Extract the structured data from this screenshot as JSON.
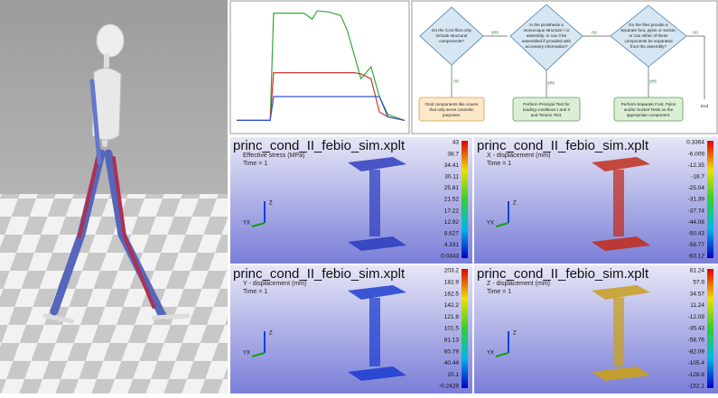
{
  "line_chart": {
    "type": "line",
    "xlim": [
      0,
      100
    ],
    "ylim": [
      0,
      100
    ],
    "x": [
      0,
      10,
      20,
      22,
      40,
      45,
      48,
      55,
      62,
      66,
      70,
      74,
      80,
      85,
      90,
      100
    ],
    "series": [
      {
        "color": "#33aa33",
        "values": [
          5,
          5,
          5,
          95,
          95,
          90,
          97,
          96,
          93,
          80,
          60,
          40,
          50,
          25,
          10,
          5
        ]
      },
      {
        "color": "#cc3333",
        "values": [
          5,
          5,
          5,
          45,
          45,
          45,
          45,
          45,
          45,
          45,
          45,
          44,
          40,
          12,
          8,
          5
        ]
      },
      {
        "color": "#3355cc",
        "values": [
          5,
          5,
          5,
          25,
          25,
          25,
          25,
          25,
          25,
          25,
          25,
          25,
          25,
          25,
          8,
          5
        ]
      }
    ]
  },
  "flowchart": {
    "decisions": [
      {
        "line1": "Do the CAD files only",
        "line2": "include structural",
        "line3": "components?"
      },
      {
        "line1": "In the prosthesis a",
        "line2": "monocoque structure / or",
        "line3": "assembly, or can it be",
        "line4": "assembled if provided with",
        "line5": "accessory information?"
      },
      {
        "line1": "Do the files provide a",
        "line2": "separate foot, pylon or socket,",
        "line3": "or can either of these",
        "line4": "components be separated",
        "line5": "from the assembly?"
      }
    ],
    "actions": [
      {
        "line1": "Omit components like covers",
        "line2": "that only serve cosmetic",
        "line3": "purposes."
      },
      {
        "line1": "Perform Principal Test for",
        "line2": "loading conditions I and II",
        "line3": "and Torsion Test."
      },
      {
        "line1": "Perform Separate Foot, Pylon",
        "line2": "and/or Socket Tests on the",
        "line3": "appropriate component."
      }
    ],
    "end": "End",
    "edges": [
      "yes",
      "no",
      "yes",
      "no",
      "yes",
      "no"
    ]
  },
  "triad": {
    "z": "Z",
    "yx": "YX"
  },
  "panels": [
    {
      "title": "princ_cond_II_febio_sim.xplt",
      "field": "Effective stress (MPa)",
      "time": "Time = 1",
      "tint": "#3040c0",
      "colorbar": [
        "43",
        "38.7",
        "34.41",
        "30.11",
        "25.81",
        "21.52",
        "17.22",
        "12.92",
        "8.627",
        "4.331",
        "0.0343"
      ]
    },
    {
      "title": "princ_cond_II_febio_sim.xplt",
      "field": "X - displacement (mm)",
      "time": "Time = 1",
      "tint": "#c03020",
      "colorbar": [
        "0.3364",
        "-6.009",
        "-12.35",
        "-18.7",
        "-25.04",
        "-31.39",
        "-37.74",
        "-44.08",
        "-50.43",
        "-56.77",
        "-63.12"
      ]
    },
    {
      "title": "princ_cond_II_febio_sim.xplt",
      "field": "Y - displacement (mm)",
      "time": "Time = 1",
      "tint": "#2040d0",
      "colorbar": [
        "203.2",
        "182.9",
        "162.5",
        "142.2",
        "121.8",
        "101.5",
        "81.13",
        "60.79",
        "40.44",
        "20.1",
        "-0.2428"
      ]
    },
    {
      "title": "princ_cond_II_febio_sim.xplt",
      "field": "Z - displacement (mm)",
      "time": "Time = 1",
      "tint": "#c8a020",
      "colorbar": [
        "81.24",
        "57.9",
        "34.57",
        "11.24",
        "-12.09",
        "-35.43",
        "-58.76",
        "-82.09",
        "-105.4",
        "-128.8",
        "-152.1"
      ]
    }
  ]
}
